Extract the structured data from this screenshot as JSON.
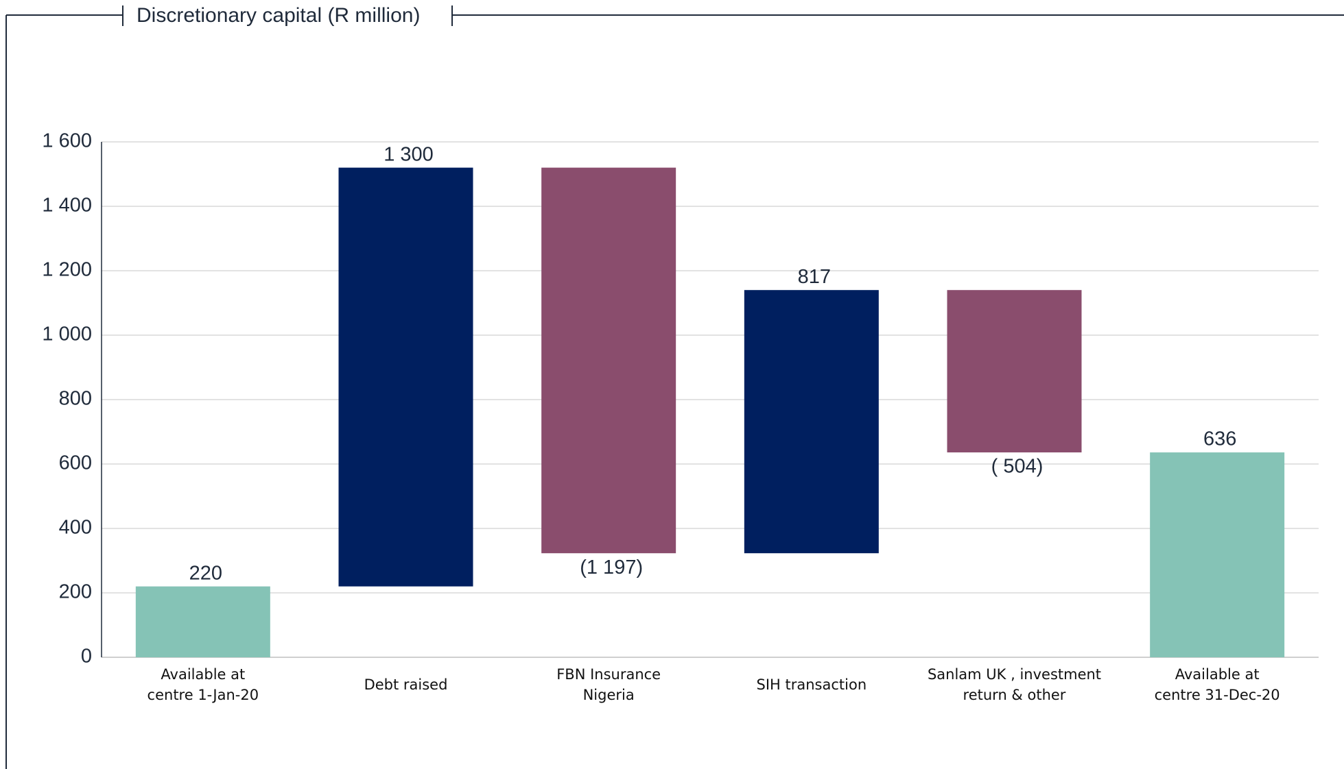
{
  "chart_data": {
    "type": "waterfall",
    "title": "Discretionary capital (R million)",
    "categories": [
      "Available at\ncentre 1-Jan-20",
      "Debt raised",
      "FBN Insurance\nNigeria",
      "SIH transaction",
      "Sanlam UK , investment\nreturn & other",
      "Available at\ncentre 31-Dec-20"
    ],
    "values": [
      220,
      1300,
      -1197,
      817,
      -504,
      636
    ],
    "value_labels": [
      "220",
      "1 300",
      "(1 197)",
      "817",
      "( 504)",
      "636"
    ],
    "measures": [
      "total",
      "relative",
      "relative",
      "relative",
      "relative",
      "total"
    ],
    "colors": {
      "total": "#85c3b6",
      "increase": "#001f5f",
      "decrease": "#8a4d6d"
    },
    "ylim": [
      0,
      1600
    ],
    "yticks": [
      0,
      200,
      400,
      600,
      800,
      {
        "value": 1000,
        "label": "1 000"
      },
      {
        "value": 1200,
        "label": "1 200"
      },
      {
        "value": 1400,
        "label": "1 400"
      },
      {
        "value": 1600,
        "label": "1 600"
      }
    ],
    "grid": true
  }
}
